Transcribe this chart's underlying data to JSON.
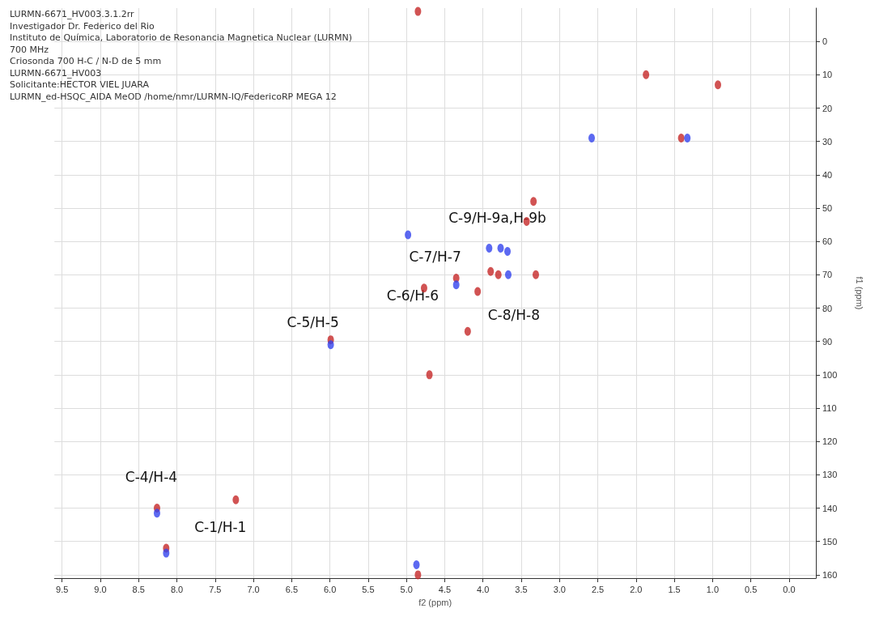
{
  "chart_data": {
    "type": "scatter",
    "xlabel": "f2 (ppm)",
    "ylabel": "f1 (ppm)",
    "xlim": [
      9.6,
      -0.35
    ],
    "ylim": [
      161,
      -10
    ],
    "xticks": [
      {
        "value": 9.5,
        "label": "9.5"
      },
      {
        "value": 9,
        "label": "9.0"
      },
      {
        "value": 8.5,
        "label": "8.5"
      },
      {
        "value": 8,
        "label": "8.0"
      },
      {
        "value": 7.5,
        "label": "7.5"
      },
      {
        "value": 7,
        "label": "7.0"
      },
      {
        "value": 6.5,
        "label": "6.5"
      },
      {
        "value": 6,
        "label": "6.0"
      },
      {
        "value": 5.5,
        "label": "5.5"
      },
      {
        "value": 5,
        "label": "5.0"
      },
      {
        "value": 4.5,
        "label": "4.5"
      },
      {
        "value": 4,
        "label": "4.0"
      },
      {
        "value": 3.5,
        "label": "3.5"
      },
      {
        "value": 3,
        "label": "3.0"
      },
      {
        "value": 2.5,
        "label": "2.5"
      },
      {
        "value": 2,
        "label": "2.0"
      },
      {
        "value": 1.5,
        "label": "1.5"
      },
      {
        "value": 1,
        "label": "1.0"
      },
      {
        "value": 0.5,
        "label": "0.5"
      },
      {
        "value": 0,
        "label": "0.0"
      }
    ],
    "yticks": [
      0,
      10,
      20,
      30,
      40,
      50,
      60,
      70,
      80,
      90,
      100,
      110,
      120,
      130,
      140,
      150,
      160
    ],
    "grid": true,
    "marker": "circle",
    "series": [
      {
        "color": "#c62828",
        "x": [
          4.85,
          1.87,
          0.93,
          1.41,
          3.34,
          3.43,
          3.9,
          3.8,
          3.31,
          4.35,
          4.77,
          4.07,
          4.2,
          5.99,
          4.7,
          8.26,
          8.14,
          4.85,
          7.23
        ],
        "values": [
          -9,
          10,
          13,
          29,
          48,
          54,
          69,
          70,
          70,
          71,
          74,
          75,
          87,
          89.5,
          100,
          140,
          152,
          160,
          137.5
        ]
      },
      {
        "color": "#3344ee",
        "x": [
          2.58,
          1.33,
          3.92,
          3.77,
          3.68,
          3.67,
          4.35,
          4.98,
          5.99,
          8.26,
          8.14,
          4.87
        ],
        "values": [
          29,
          29,
          62,
          62,
          63,
          70,
          73,
          58,
          91,
          141.5,
          153.5,
          157
        ]
      }
    ],
    "annotations": [
      "LURMN-6671_HV003.3.1.2rr",
      "Investigador Dr. Federico del Rio",
      "Instituto de Química, Laboratorio de Resonancia Magnetica Nuclear (LURMN)",
      "700 MHz",
      "Criosonda 700 H-C / N-D de 5 mm",
      "LURMN-6671_HV003",
      "Solicitante:HECTOR VIEL JUARA",
      "LURMN_ed-HSQC_AIDA MeOD /home/nmr/LURMN-IQ/FedericoRP MEGA 12",
      {
        "text": "C-9/H-9a,H-9b",
        "x": 3.77,
        "y": 62
      },
      {
        "text": "C-7/H-7",
        "x": 4.35,
        "y": 71
      },
      {
        "text": "C-6/H-6",
        "x": 4.77,
        "y": 74
      },
      {
        "text": "C-5/H-5",
        "x": 5.99,
        "y": 89.5
      },
      {
        "text": "C-8/H-8",
        "x": 4.2,
        "y": 87
      },
      {
        "text": "C-4/H-4",
        "x": 8.26,
        "y": 140
      },
      {
        "text": "C-1/H-1",
        "x": 8.14,
        "y": 152
      }
    ]
  }
}
